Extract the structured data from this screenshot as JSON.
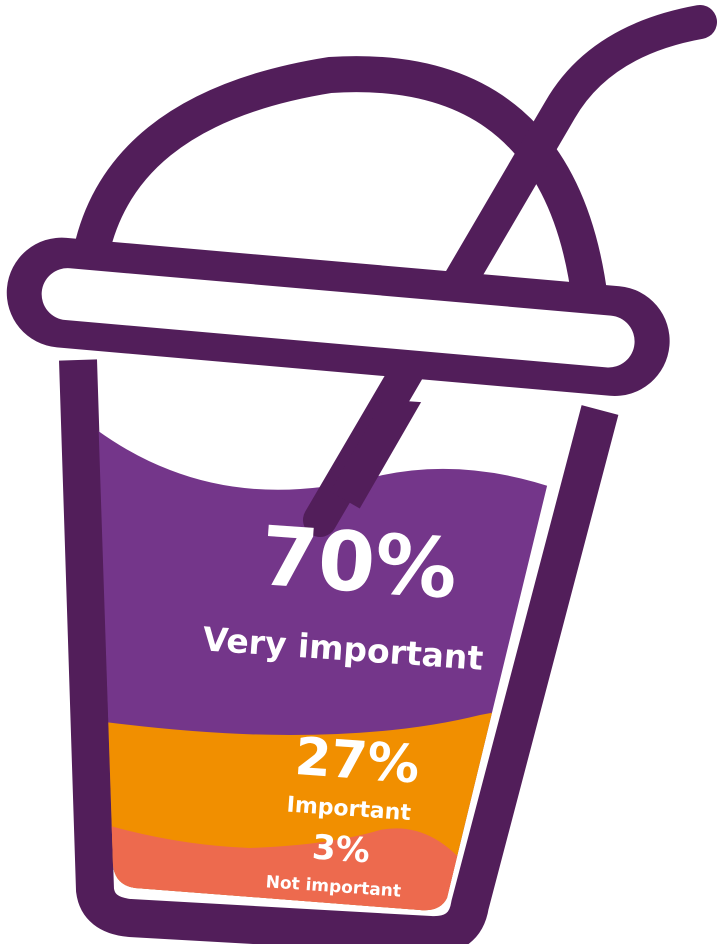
{
  "segments": [
    {
      "value": "70%",
      "label": "Very important"
    },
    {
      "value": "27%",
      "label": "Important"
    },
    {
      "value": "3%",
      "label": "Not important"
    }
  ]
}
